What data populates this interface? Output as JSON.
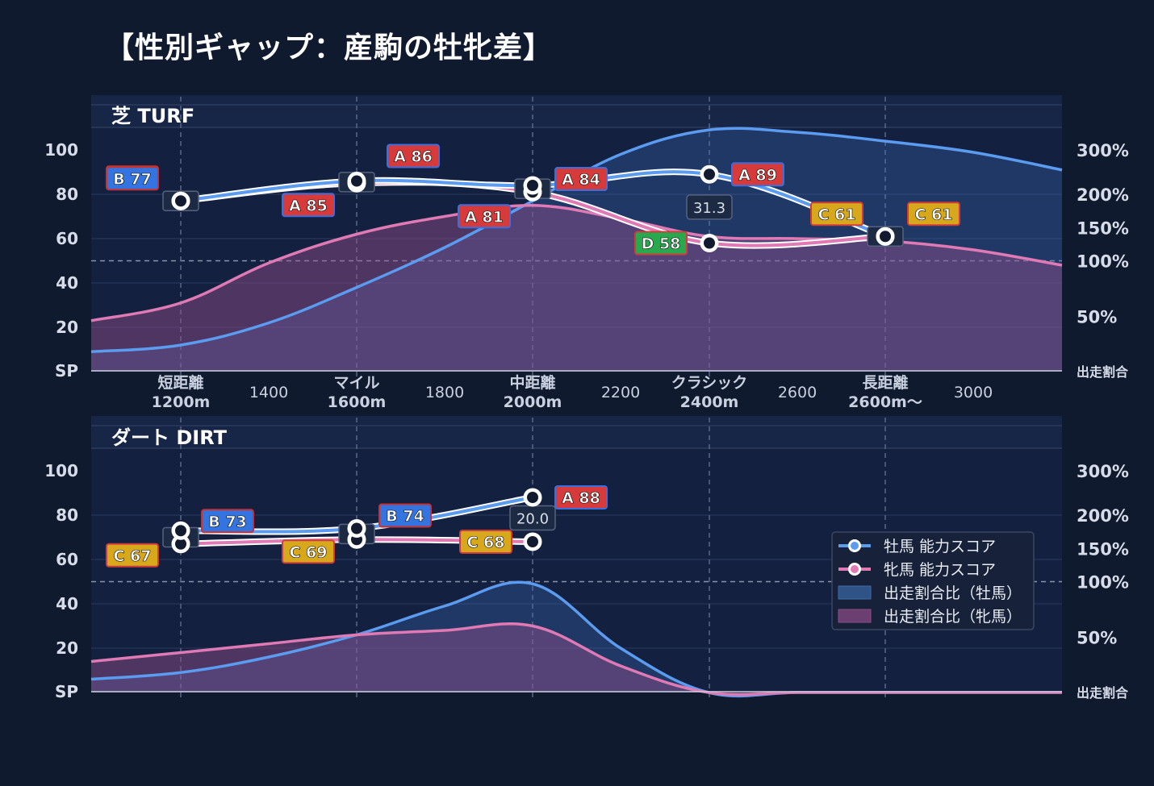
{
  "title": "【性別ギャップ：産駒の牡牝差】",
  "colors": {
    "background": "#0f1a2f",
    "panel": "#132040",
    "male": "#5b9cf0",
    "female": "#e07ab5",
    "gradeA": "#d63a3a",
    "gradeB": "#3474e0",
    "gradeC": "#d8a81c",
    "gradeD": "#2aa84d"
  },
  "x_axis": {
    "category_labels": [
      {
        "name": "短距離",
        "dist": "1200m"
      },
      {
        "name": "マイル",
        "dist": "1600m"
      },
      {
        "name": "中距離",
        "dist": "2000m"
      },
      {
        "name": "クラシック",
        "dist": "2400m"
      },
      {
        "name": "長距離",
        "dist": "2600m〜"
      }
    ],
    "intermediate_labels": [
      "1400",
      "1800",
      "2200",
      "2600",
      "3000"
    ]
  },
  "y_left_ticks": [
    "100",
    "80",
    "60",
    "40",
    "20",
    "SP"
  ],
  "y_right_ticks": [
    "300%",
    "200%",
    "150%",
    "100%",
    "50%",
    "出走割合"
  ],
  "legend": {
    "items": [
      {
        "label": "牡馬 能力スコア",
        "kind": "line",
        "color": "#5b9cf0"
      },
      {
        "label": "牝馬 能力スコア",
        "kind": "line",
        "color": "#e07ab5"
      },
      {
        "label": "出走割合比（牡馬）",
        "kind": "patch",
        "color": "#2f5387"
      },
      {
        "label": "出走割合比（牝馬）",
        "kind": "patch",
        "color": "#6b3f70"
      }
    ]
  },
  "chart_data": [
    {
      "type": "line",
      "title": "芝 TURF",
      "categories": [
        "短距離",
        "マイル",
        "中距離",
        "クラシック",
        "長距離"
      ],
      "ylim": [
        0,
        100
      ],
      "series": [
        {
          "name": "牡馬 能力スコア",
          "values": [
            77,
            86,
            84,
            89,
            61
          ],
          "grades": [
            "B",
            "A",
            "A",
            "A",
            "C"
          ]
        },
        {
          "name": "牝馬 能力スコア",
          "values": [
            77,
            85,
            81,
            58,
            61
          ],
          "grades": [
            "B",
            "A",
            "A",
            "D",
            "C"
          ]
        }
      ],
      "annotations": [
        {
          "category": "クラシック",
          "text": "31.3"
        }
      ],
      "area_series": [
        {
          "name": "出走割合比（牡馬）",
          "x": [
            1100,
            1200,
            1400,
            1600,
            1800,
            2000,
            2200,
            2400,
            2600,
            2800,
            3000,
            3200
          ],
          "y_axis_value": [
            9,
            12,
            22,
            38,
            56,
            77,
            98,
            109,
            108,
            104,
            99,
            91
          ]
        },
        {
          "name": "出走割合比（牝馬）",
          "x": [
            1100,
            1200,
            1400,
            1600,
            1800,
            2000,
            2200,
            2400,
            2600,
            2800,
            3000,
            3200
          ],
          "y_axis_value": [
            23,
            31,
            49,
            62,
            70,
            75,
            69,
            61,
            60,
            59,
            55,
            48
          ]
        }
      ]
    },
    {
      "type": "line",
      "title": "ダート DIRT",
      "categories": [
        "短距離",
        "マイル",
        "中距離",
        "クラシック",
        "長距離"
      ],
      "ylim": [
        0,
        100
      ],
      "series": [
        {
          "name": "牡馬 能力スコア",
          "values": [
            73,
            74,
            88,
            null,
            null
          ],
          "grades": [
            "B",
            "B",
            "A",
            null,
            null
          ]
        },
        {
          "name": "牝馬 能力スコア",
          "values": [
            67,
            69,
            68,
            null,
            null
          ],
          "grades": [
            "C",
            "C",
            "C",
            null,
            null
          ]
        }
      ],
      "annotations": [
        {
          "category": "中距離",
          "text": "20.0"
        }
      ],
      "area_series": [
        {
          "name": "出走割合比（牡馬）",
          "x": [
            1100,
            1200,
            1400,
            1600,
            1800,
            2000,
            2200,
            2400,
            2600,
            2800,
            3000,
            3200
          ],
          "y_axis_value": [
            6,
            9,
            16,
            26,
            39,
            49,
            20,
            0,
            0,
            0,
            0,
            0
          ]
        },
        {
          "name": "出走割合比（牝馬）",
          "x": [
            1100,
            1200,
            1400,
            1600,
            1800,
            2000,
            2200,
            2400,
            2600,
            2800,
            3000,
            3200
          ],
          "y_axis_value": [
            14,
            18,
            22,
            26,
            28,
            30,
            12,
            0,
            0,
            0,
            0,
            0
          ]
        }
      ]
    }
  ]
}
